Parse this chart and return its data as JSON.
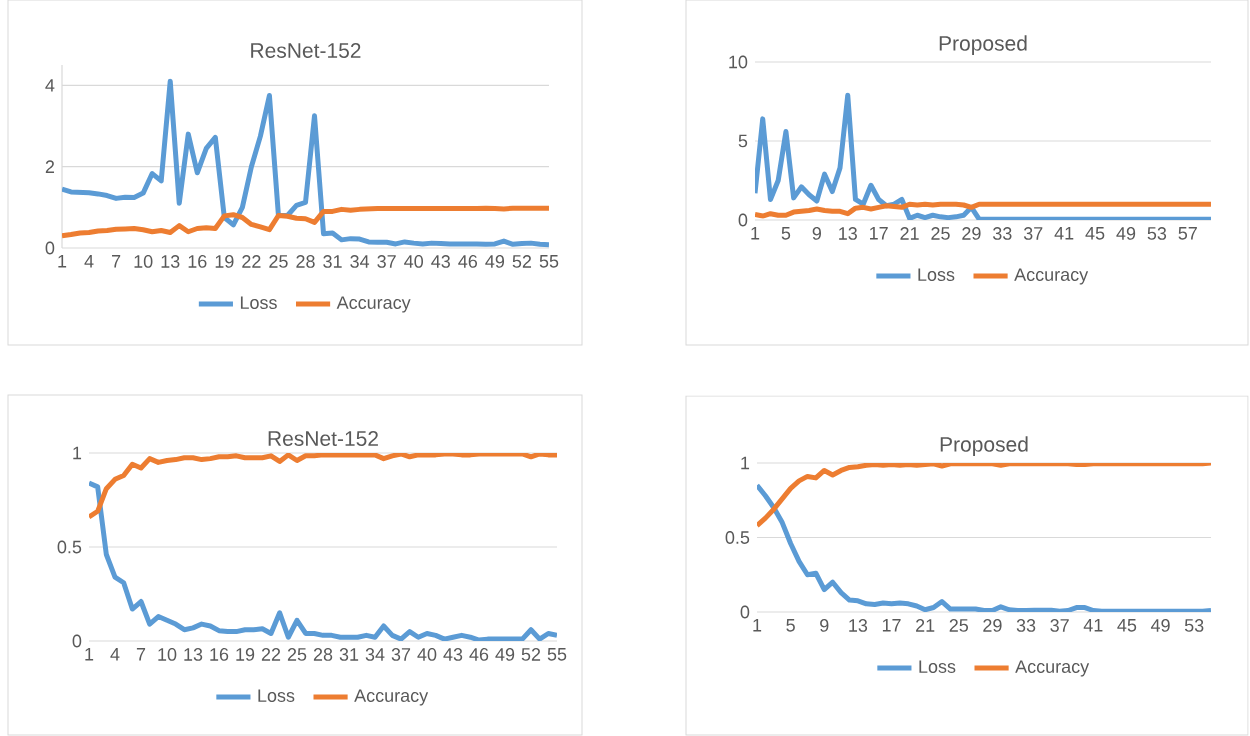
{
  "chart_data": [
    {
      "type": "line",
      "title": "ResNet-152",
      "categories": [
        "1",
        null,
        null,
        "4",
        null,
        null,
        "7",
        null,
        null,
        "10",
        null,
        null,
        "13",
        null,
        null,
        "16",
        null,
        null,
        "19",
        null,
        null,
        "22",
        null,
        null,
        "25",
        null,
        null,
        "28",
        null,
        null,
        "31",
        null,
        null,
        "34",
        null,
        null,
        "37",
        null,
        null,
        "40",
        null,
        null,
        "43",
        null,
        null,
        "46",
        null,
        null,
        "49",
        null,
        null,
        "52",
        null,
        null,
        "55"
      ],
      "series": [
        {
          "name": "Loss",
          "color": "#5b9bd5",
          "values": [
            1.45,
            1.38,
            1.37,
            1.36,
            1.33,
            1.29,
            1.22,
            1.25,
            1.24,
            1.35,
            1.83,
            1.65,
            4.1,
            1.1,
            2.8,
            1.85,
            2.45,
            2.72,
            0.75,
            0.57,
            1.0,
            2.0,
            2.75,
            3.75,
            0.8,
            0.8,
            1.05,
            1.12,
            3.25,
            0.35,
            0.37,
            0.2,
            0.23,
            0.22,
            0.15,
            0.14,
            0.14,
            0.1,
            0.15,
            0.12,
            0.1,
            0.12,
            0.11,
            0.1,
            0.1,
            0.1,
            0.1,
            0.09,
            0.1,
            0.17,
            0.09,
            0.11,
            0.12,
            0.09,
            0.08
          ]
        },
        {
          "name": "Accuracy",
          "color": "#ed7d31",
          "values": [
            0.3,
            0.33,
            0.37,
            0.38,
            0.42,
            0.43,
            0.46,
            0.47,
            0.48,
            0.45,
            0.4,
            0.43,
            0.38,
            0.55,
            0.4,
            0.48,
            0.5,
            0.48,
            0.79,
            0.82,
            0.75,
            0.58,
            0.52,
            0.45,
            0.8,
            0.78,
            0.73,
            0.72,
            0.63,
            0.9,
            0.9,
            0.95,
            0.93,
            0.95,
            0.96,
            0.97,
            0.97,
            0.97,
            0.97,
            0.97,
            0.97,
            0.97,
            0.97,
            0.97,
            0.97,
            0.97,
            0.97,
            0.98,
            0.97,
            0.96,
            0.98,
            0.98,
            0.98,
            0.98,
            0.98
          ]
        }
      ],
      "ylim": [
        0,
        4.5
      ],
      "yticks": [
        0,
        2,
        4
      ],
      "grid": "y",
      "legend": "bottom"
    },
    {
      "type": "line",
      "title": "Proposed",
      "categories": [
        "1",
        null,
        null,
        null,
        "5",
        null,
        null,
        null,
        "9",
        null,
        null,
        null,
        "13",
        null,
        null,
        null,
        "17",
        null,
        null,
        null,
        "21",
        null,
        null,
        null,
        "25",
        null,
        null,
        null,
        "29",
        null,
        null,
        null,
        "33",
        null,
        null,
        null,
        "37",
        null,
        null,
        null,
        "41",
        null,
        null,
        null,
        "45",
        null,
        null,
        null,
        "49",
        null,
        null,
        null,
        "53",
        null,
        null,
        null,
        "57",
        null,
        null,
        null
      ],
      "series": [
        {
          "name": "Loss",
          "color": "#5b9bd5",
          "values": [
            1.7,
            6.4,
            1.3,
            2.5,
            5.6,
            1.4,
            2.1,
            1.6,
            1.2,
            2.9,
            1.8,
            3.3,
            7.9,
            1.3,
            1.0,
            2.2,
            1.3,
            0.9,
            1.0,
            1.3,
            0.1,
            0.3,
            0.15,
            0.3,
            0.2,
            0.15,
            0.2,
            0.3,
            0.8,
            0.05,
            0.05,
            0.05,
            0.05,
            0.04,
            0.05,
            0.04,
            0.05,
            0.04,
            0.04,
            0.04,
            0.04,
            0.04,
            0.04,
            0.04,
            0.04,
            0.04,
            0.04,
            0.04,
            0.04,
            0.04,
            0.04,
            0.04,
            0.04,
            0.04,
            0.04,
            0.04,
            0.04,
            0.04,
            0.04,
            0.04
          ]
        },
        {
          "name": "Accuracy",
          "color": "#ed7d31",
          "values": [
            0.35,
            0.25,
            0.4,
            0.3,
            0.3,
            0.5,
            0.55,
            0.6,
            0.7,
            0.6,
            0.55,
            0.55,
            0.4,
            0.75,
            0.8,
            0.7,
            0.8,
            0.9,
            0.85,
            0.8,
            1.0,
            0.95,
            1.0,
            0.95,
            1.0,
            1.0,
            1.0,
            0.95,
            0.8,
            1.0,
            1.0,
            1.0,
            1.0,
            1.0,
            1.0,
            1.0,
            1.0,
            1.0,
            1.0,
            1.0,
            1.0,
            1.0,
            1.0,
            1.0,
            1.0,
            1.0,
            1.0,
            1.0,
            1.0,
            1.0,
            1.0,
            1.0,
            1.0,
            1.0,
            1.0,
            1.0,
            1.0,
            1.0,
            1.0,
            1.0
          ]
        }
      ],
      "ylim": [
        0,
        10
      ],
      "yticks": [
        0,
        5,
        10
      ],
      "grid": "y",
      "legend": "bottom"
    },
    {
      "type": "line",
      "title": "ResNet-152",
      "categories": [
        "1",
        null,
        null,
        "4",
        null,
        null,
        "7",
        null,
        null,
        "10",
        null,
        null,
        "13",
        null,
        null,
        "16",
        null,
        null,
        "19",
        null,
        null,
        "22",
        null,
        null,
        "25",
        null,
        null,
        "28",
        null,
        null,
        "31",
        null,
        null,
        "34",
        null,
        null,
        "37",
        null,
        null,
        "40",
        null,
        null,
        "43",
        null,
        null,
        "46",
        null,
        null,
        "49",
        null,
        null,
        "52",
        null,
        null,
        "55"
      ],
      "series": [
        {
          "name": "Loss",
          "color": "#5b9bd5",
          "values": [
            0.84,
            0.82,
            0.46,
            0.34,
            0.31,
            0.17,
            0.21,
            0.09,
            0.13,
            0.11,
            0.09,
            0.06,
            0.07,
            0.09,
            0.08,
            0.055,
            0.05,
            0.05,
            0.06,
            0.06,
            0.065,
            0.04,
            0.15,
            0.02,
            0.11,
            0.04,
            0.04,
            0.03,
            0.03,
            0.02,
            0.02,
            0.02,
            0.03,
            0.02,
            0.08,
            0.03,
            0.01,
            0.05,
            0.02,
            0.04,
            0.03,
            0.01,
            0.02,
            0.03,
            0.02,
            0.005,
            0.01,
            0.01,
            0.01,
            0.01,
            0.01,
            0.06,
            0.01,
            0.04,
            0.03
          ]
        },
        {
          "name": "Accuracy",
          "color": "#ed7d31",
          "values": [
            0.66,
            0.69,
            0.81,
            0.86,
            0.88,
            0.94,
            0.92,
            0.97,
            0.95,
            0.96,
            0.965,
            0.975,
            0.975,
            0.965,
            0.97,
            0.98,
            0.98,
            0.985,
            0.975,
            0.975,
            0.975,
            0.985,
            0.955,
            0.99,
            0.96,
            0.985,
            0.985,
            0.99,
            0.99,
            0.99,
            0.99,
            0.99,
            0.99,
            0.99,
            0.97,
            0.985,
            0.995,
            0.98,
            0.99,
            0.99,
            0.99,
            0.995,
            0.995,
            0.99,
            0.99,
            0.995,
            0.995,
            0.995,
            0.995,
            0.995,
            0.995,
            0.98,
            0.995,
            0.99,
            0.99
          ]
        }
      ],
      "ylim": [
        0,
        1
      ],
      "yticks": [
        0,
        0.5,
        1
      ],
      "grid": "y",
      "legend": "bottom"
    },
    {
      "type": "line",
      "title": "Proposed",
      "categories": [
        "1",
        null,
        null,
        null,
        "5",
        null,
        null,
        null,
        "9",
        null,
        null,
        null,
        "13",
        null,
        null,
        null,
        "17",
        null,
        null,
        null,
        "21",
        null,
        null,
        null,
        "25",
        null,
        null,
        null,
        "29",
        null,
        null,
        null,
        "33",
        null,
        null,
        null,
        "37",
        null,
        null,
        null,
        "41",
        null,
        null,
        null,
        "45",
        null,
        null,
        null,
        "49",
        null,
        null,
        null,
        "53",
        null,
        null
      ],
      "series": [
        {
          "name": "Loss",
          "color": "#5b9bd5",
          "values": [
            0.85,
            0.78,
            0.7,
            0.6,
            0.46,
            0.34,
            0.25,
            0.26,
            0.15,
            0.2,
            0.13,
            0.08,
            0.075,
            0.055,
            0.05,
            0.06,
            0.055,
            0.06,
            0.055,
            0.04,
            0.015,
            0.03,
            0.07,
            0.02,
            0.02,
            0.02,
            0.02,
            0.01,
            0.01,
            0.035,
            0.015,
            0.01,
            0.01,
            0.012,
            0.012,
            0.012,
            0.005,
            0.01,
            0.03,
            0.03,
            0.01,
            0.005,
            0.005,
            0.005,
            0.005,
            0.005,
            0.005,
            0.005,
            0.005,
            0.005,
            0.005,
            0.005,
            0.005,
            0.005,
            0.01
          ]
        },
        {
          "name": "Accuracy",
          "color": "#ed7d31",
          "values": [
            0.58,
            0.63,
            0.69,
            0.76,
            0.83,
            0.88,
            0.91,
            0.9,
            0.95,
            0.92,
            0.95,
            0.97,
            0.975,
            0.985,
            0.99,
            0.985,
            0.99,
            0.985,
            0.99,
            0.985,
            0.99,
            0.995,
            0.98,
            0.995,
            0.995,
            0.995,
            0.995,
            0.995,
            0.995,
            0.985,
            0.995,
            0.995,
            0.995,
            0.995,
            0.995,
            0.995,
            0.995,
            0.995,
            0.99,
            0.99,
            0.995,
            0.995,
            0.995,
            0.995,
            0.995,
            0.995,
            0.995,
            0.995,
            0.995,
            0.995,
            0.995,
            0.995,
            0.995,
            0.995,
            1.0
          ]
        }
      ],
      "ylim": [
        0,
        1
      ],
      "yticks": [
        0,
        0.5,
        1
      ],
      "grid": "y",
      "legend": "bottom"
    }
  ]
}
